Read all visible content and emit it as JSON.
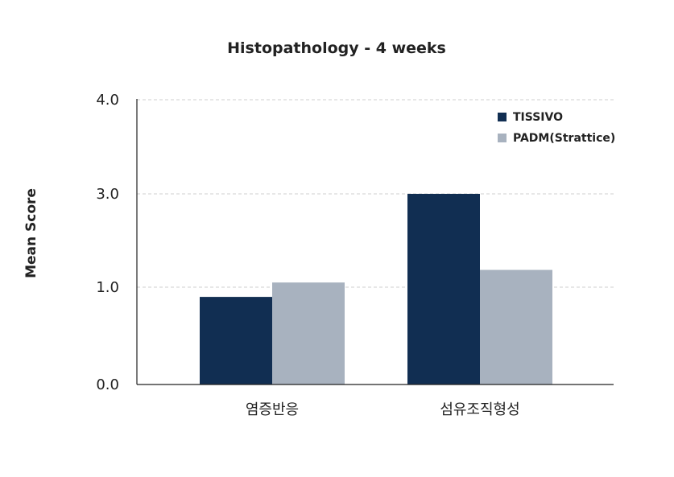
{
  "chart_data": {
    "type": "bar",
    "title": "Histopathology - 4 weeks",
    "ylabel": "Mean Score",
    "xlabel": "",
    "categories": [
      "염증반응",
      "섬유조직형성"
    ],
    "series": [
      {
        "name": "TISSIVO",
        "color": "#112e52",
        "values": [
          0.9,
          3.0
        ]
      },
      {
        "name": "PADM(Strattice)",
        "color": "#a8b2bf",
        "values": [
          1.1,
          1.37
        ]
      }
    ],
    "yticks": [
      "0.0",
      "1.0",
      "3.0",
      "4.0"
    ],
    "ylim": [
      0,
      4
    ],
    "grid": true,
    "legend": "top-right"
  }
}
